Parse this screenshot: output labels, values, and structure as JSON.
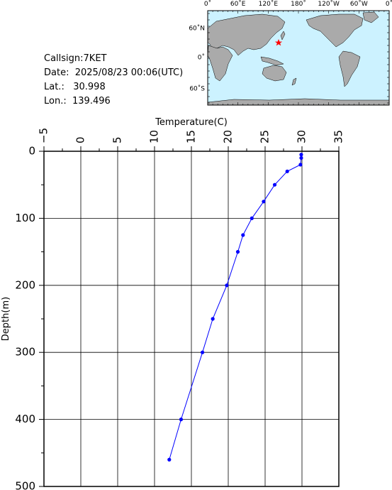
{
  "station": {
    "callsign_label": "Callsign:",
    "callsign": "7KET",
    "date_label": "Date:",
    "date": "2025/08/23 00:06(UTC)",
    "lat_label": "Lat.:",
    "lat": "30.998",
    "lon_label": "Lon.:",
    "lon": "139.496"
  },
  "map": {
    "top_labels": [
      "0˚",
      "60˚E",
      "120˚E",
      "180˚",
      "120˚W",
      "60˚W",
      "0˚"
    ],
    "side_labels": [
      "60˚N",
      "0˚",
      "60˚S"
    ],
    "ocean_color": "#ccf2ff",
    "land_color": "#aaaaaa",
    "marker_color": "#ff0000"
  },
  "chart_data": {
    "type": "line",
    "title": "",
    "xlabel": "Temperature(C)",
    "ylabel": "Depth(m)",
    "xlim": [
      -5,
      35
    ],
    "ylim": [
      0,
      500
    ],
    "y_inverted": true,
    "xticks": [
      "−5",
      "0",
      "5",
      "10",
      "15",
      "20",
      "25",
      "30",
      "35"
    ],
    "yticks": [
      "0",
      "100",
      "200",
      "300",
      "400",
      "500"
    ],
    "grid": true,
    "line_color": "#0000ff",
    "series": [
      {
        "x": [
          29.9,
          29.9,
          29.8,
          28.0,
          26.3,
          24.8,
          23.2,
          22.0,
          21.3,
          19.8,
          17.9,
          16.5,
          13.6,
          12.0
        ],
        "y": [
          5,
          10,
          20,
          30,
          50,
          75,
          100,
          125,
          150,
          200,
          250,
          300,
          400,
          460
        ]
      }
    ]
  }
}
